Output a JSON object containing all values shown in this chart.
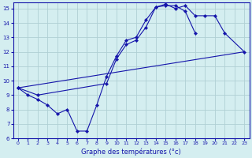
{
  "bg_color": "#d4eef0",
  "grid_color": "#b0d0d4",
  "line_color": "#1414aa",
  "xlabel": "Graphe des températures (°c)",
  "xlim": [
    -0.5,
    23.5
  ],
  "ylim": [
    6,
    15.4
  ],
  "yticks": [
    6,
    7,
    8,
    9,
    10,
    11,
    12,
    13,
    14,
    15
  ],
  "xticks": [
    0,
    1,
    2,
    3,
    4,
    5,
    6,
    7,
    8,
    9,
    10,
    11,
    12,
    13,
    14,
    15,
    16,
    17,
    18,
    19,
    20,
    21,
    22,
    23
  ],
  "series1_x": [
    0,
    1,
    2,
    3,
    4,
    5,
    6,
    7,
    8,
    9,
    10,
    11,
    12,
    13,
    14,
    15,
    16,
    17,
    18
  ],
  "series1_y": [
    9.5,
    9.0,
    8.7,
    8.3,
    7.7,
    8.0,
    6.5,
    6.5,
    8.3,
    10.3,
    11.7,
    12.8,
    13.0,
    14.2,
    15.1,
    15.2,
    15.2,
    14.8,
    13.3
  ],
  "series2_x": [
    0,
    23
  ],
  "series2_y": [
    9.5,
    12.0
  ],
  "series3_x": [
    0,
    2,
    9,
    10,
    11,
    12,
    13,
    14,
    15,
    16,
    17,
    18,
    19,
    20,
    21,
    23
  ],
  "series3_y": [
    9.5,
    9.0,
    9.8,
    11.5,
    12.5,
    12.8,
    13.7,
    15.1,
    15.3,
    15.0,
    15.2,
    14.5,
    14.5,
    14.5,
    13.3,
    12.0
  ]
}
